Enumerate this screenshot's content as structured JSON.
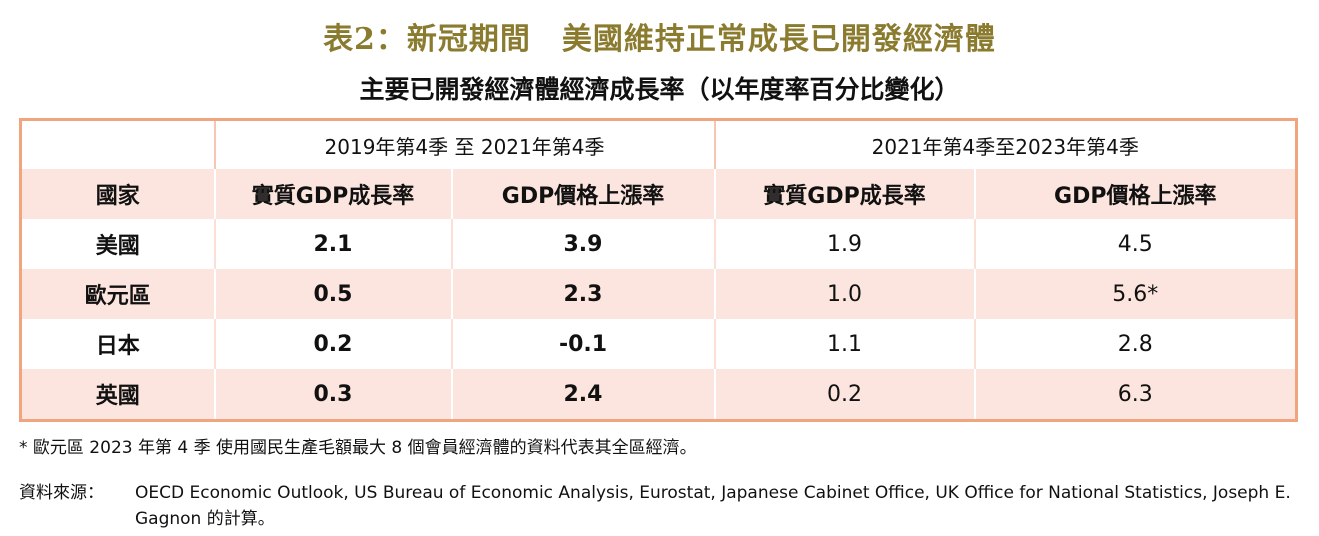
{
  "title": "表2：新冠期間　美國維持正常成長已開發經濟體",
  "subtitle": "主要已開發經濟體經濟成長率（以年度率百分比變化）",
  "table": {
    "period_headers": [
      "2019年第4季 至 2021年第4季",
      "2021年第4季至2023年第4季"
    ],
    "columns": [
      "國家",
      "實質GDP成長率",
      "GDP價格上漲率",
      "實質GDP成長率",
      "GDP價格上漲率"
    ],
    "rows": [
      [
        "美國",
        "2.1",
        "3.9",
        "1.9",
        "4.5"
      ],
      [
        "歐元區",
        "0.5",
        "2.3",
        "1.0",
        "5.6*"
      ],
      [
        "日本",
        "0.2",
        "-0.1",
        "1.1",
        "2.8"
      ],
      [
        "英國",
        "0.3",
        "2.4",
        "0.2",
        "6.3"
      ]
    ]
  },
  "footnote": "* 歐元區 2023 年第 4 季 使用國民生產毛額最大 8 個會員經濟體的資料代表其全區經濟。",
  "source_label": "資料來源：",
  "source_text": "OECD Economic Outlook, US Bureau of Economic Analysis, Eurostat, Japanese Cabinet Office, UK Office for National Statistics, Joseph E. Gagnon 的計算。",
  "colors": {
    "title": "#8b7b2f",
    "border": "#f0a57f",
    "row_highlight": "#fce5df"
  }
}
